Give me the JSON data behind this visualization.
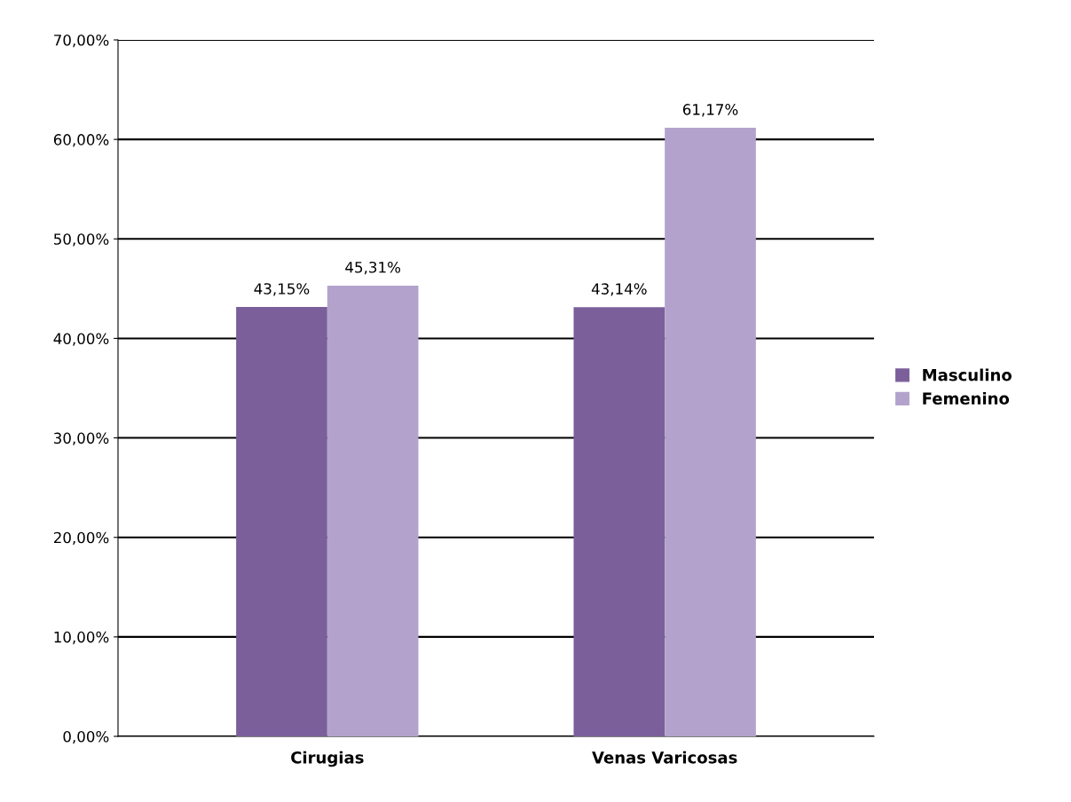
{
  "chart_data": {
    "type": "bar",
    "categories": [
      "Cirugias",
      "Venas Varicosas"
    ],
    "series": [
      {
        "name": "Masculino",
        "color": "#7b5f9a",
        "values": [
          43.15,
          43.14
        ],
        "value_labels": [
          "43,15%",
          "43,14%"
        ]
      },
      {
        "name": "Femenino",
        "color": "#b3a3cc",
        "values": [
          45.31,
          61.17
        ],
        "value_labels": [
          "45,31%",
          "61,17%"
        ]
      }
    ],
    "ylim": [
      0,
      70
    ],
    "yticks": [
      {
        "value": 0,
        "label": "0,00%"
      },
      {
        "value": 10,
        "label": "10,00%"
      },
      {
        "value": 20,
        "label": "20,00%"
      },
      {
        "value": 30,
        "label": "30,00%"
      },
      {
        "value": 40,
        "label": "40,00%"
      },
      {
        "value": 50,
        "label": "50,00%"
      },
      {
        "value": 60,
        "label": "60,00%"
      },
      {
        "value": 70,
        "label": "70,00%"
      }
    ],
    "grid": "y",
    "legend": "right"
  }
}
